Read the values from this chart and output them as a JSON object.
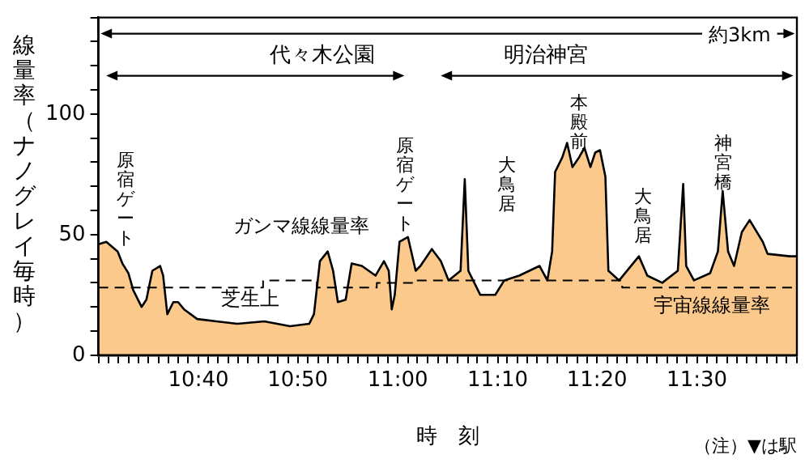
{
  "chart_data": {
    "type": "area",
    "xlabel": "時　刻",
    "ylabel": "線量率（ナノグレイ毎時）",
    "annotations": [
      "約3km",
      "代々木公園",
      "明治神宮",
      "原宿ゲート",
      "原宿ゲート",
      "大鳥居",
      "本殿前",
      "大鳥居",
      "神宮橋",
      "ガンマ線線量率",
      "芝生上",
      "宇宙線線量率",
      "（注）▼は駅"
    ],
    "series": [
      {
        "color": "#fbc98c",
        "x": [
          10.5,
          10.513,
          10.532,
          10.54,
          10.55,
          10.558,
          10.572,
          10.58,
          10.59,
          10.603,
          10.608,
          10.615,
          10.625,
          10.633,
          10.643,
          10.665,
          10.697,
          10.732,
          10.777,
          10.82,
          10.852,
          10.86,
          10.87,
          10.883,
          10.892,
          10.9,
          10.913,
          10.923,
          10.94,
          10.963,
          10.977,
          10.985,
          10.99,
          10.995,
          11.003,
          11.017,
          11.03,
          11.038,
          11.057,
          11.072,
          11.085,
          11.105,
          11.112,
          11.118,
          11.138,
          11.163,
          11.178,
          11.203,
          11.237,
          11.25,
          11.258,
          11.263,
          11.275,
          11.283,
          11.292,
          11.303,
          11.312,
          11.322,
          11.33,
          11.338,
          11.347,
          11.352,
          11.37,
          11.403,
          11.417,
          11.442,
          11.468,
          11.477,
          11.482,
          11.495,
          11.522,
          11.535,
          11.543,
          11.552,
          11.562,
          11.575,
          11.588,
          11.61,
          11.618,
          11.655,
          11.667
        ],
        "values": [
          46,
          47,
          43,
          38,
          34,
          27,
          20,
          23,
          35,
          37,
          33,
          17,
          22,
          22,
          19,
          15,
          14,
          13,
          14,
          12,
          13,
          17,
          39,
          43,
          35,
          22,
          23,
          38,
          37,
          33,
          39,
          35,
          19,
          25,
          47,
          49,
          35,
          37,
          44,
          39,
          31,
          35,
          73,
          35,
          25,
          25,
          31,
          33,
          37,
          31,
          43,
          76,
          82,
          88,
          78,
          82,
          86,
          78,
          84,
          85,
          74,
          35,
          31,
          41,
          33,
          30,
          35,
          71,
          37,
          31,
          34,
          43,
          68,
          43,
          37,
          51,
          56,
          47,
          42,
          41,
          41
        ]
      },
      {
        "type": "step",
        "color": "#000000",
        "line_style": "dashed",
        "x": [
          10.5,
          10.77,
          10.775,
          10.86,
          10.865,
          10.96,
          10.965,
          11.025,
          11.03,
          11.37,
          11.375,
          11.667
        ],
        "values": [
          28,
          28,
          31,
          31,
          28,
          28,
          30,
          30,
          31,
          31,
          28,
          28
        ]
      }
    ],
    "xlim": [
      10.5,
      11.667
    ],
    "xticks": [
      {
        "value": 10.5,
        "label": null
      },
      {
        "value": 10.517,
        "label": null
      },
      {
        "value": 10.533,
        "label": null
      },
      {
        "value": 10.55,
        "label": null
      },
      {
        "value": 10.567,
        "label": null
      },
      {
        "value": 10.583,
        "label": null
      },
      {
        "value": 10.6,
        "label": null
      },
      {
        "value": 10.617,
        "label": null
      },
      {
        "value": 10.633,
        "label": null
      },
      {
        "value": 10.65,
        "label": null
      },
      {
        "value": 10.667,
        "label": "10:40"
      },
      {
        "value": 10.683,
        "label": null
      },
      {
        "value": 10.7,
        "label": null
      },
      {
        "value": 10.717,
        "label": null
      },
      {
        "value": 10.733,
        "label": null
      },
      {
        "value": 10.75,
        "label": null
      },
      {
        "value": 10.767,
        "label": null
      },
      {
        "value": 10.783,
        "label": null
      },
      {
        "value": 10.8,
        "label": null
      },
      {
        "value": 10.817,
        "label": null
      },
      {
        "value": 10.833,
        "label": "10:50"
      },
      {
        "value": 10.85,
        "label": null
      },
      {
        "value": 10.867,
        "label": null
      },
      {
        "value": 10.883,
        "label": null
      },
      {
        "value": 10.9,
        "label": null
      },
      {
        "value": 10.917,
        "label": null
      },
      {
        "value": 10.933,
        "label": null
      },
      {
        "value": 10.95,
        "label": null
      },
      {
        "value": 10.967,
        "label": null
      },
      {
        "value": 10.983,
        "label": null
      },
      {
        "value": 11,
        "label": "11:00"
      },
      {
        "value": 11.017,
        "label": null
      },
      {
        "value": 11.033,
        "label": null
      },
      {
        "value": 11.05,
        "label": null
      },
      {
        "value": 11.067,
        "label": null
      },
      {
        "value": 11.083,
        "label": null
      },
      {
        "value": 11.1,
        "label": null
      },
      {
        "value": 11.117,
        "label": null
      },
      {
        "value": 11.133,
        "label": null
      },
      {
        "value": 11.15,
        "label": null
      },
      {
        "value": 11.167,
        "label": "11:10"
      },
      {
        "value": 11.183,
        "label": null
      },
      {
        "value": 11.2,
        "label": null
      },
      {
        "value": 11.217,
        "label": null
      },
      {
        "value": 11.233,
        "label": null
      },
      {
        "value": 11.25,
        "label": null
      },
      {
        "value": 11.267,
        "label": null
      },
      {
        "value": 11.283,
        "label": null
      },
      {
        "value": 11.3,
        "label": null
      },
      {
        "value": 11.317,
        "label": null
      },
      {
        "value": 11.333,
        "label": "11:20"
      },
      {
        "value": 11.35,
        "label": null
      },
      {
        "value": 11.367,
        "label": null
      },
      {
        "value": 11.383,
        "label": null
      },
      {
        "value": 11.4,
        "label": null
      },
      {
        "value": 11.417,
        "label": null
      },
      {
        "value": 11.433,
        "label": null
      },
      {
        "value": 11.45,
        "label": null
      },
      {
        "value": 11.467,
        "label": null
      },
      {
        "value": 11.483,
        "label": null
      },
      {
        "value": 11.5,
        "label": "11:30"
      },
      {
        "value": 11.517,
        "label": null
      },
      {
        "value": 11.533,
        "label": null
      },
      {
        "value": 11.55,
        "label": null
      },
      {
        "value": 11.567,
        "label": null
      },
      {
        "value": 11.583,
        "label": null
      },
      {
        "value": 11.6,
        "label": null
      },
      {
        "value": 11.617,
        "label": null
      },
      {
        "value": 11.633,
        "label": null
      },
      {
        "value": 11.65,
        "label": null
      },
      {
        "value": 11.667,
        "label": null
      }
    ],
    "ylim": [
      0,
      140
    ],
    "yticks": [
      0,
      {
        "value": 10,
        "label": null
      },
      {
        "value": 20,
        "label": null
      },
      {
        "value": 30,
        "label": null
      },
      {
        "value": 40,
        "label": null
      },
      50,
      {
        "value": 60,
        "label": null
      },
      {
        "value": 70,
        "label": null
      },
      {
        "value": 80,
        "label": null
      },
      {
        "value": 90,
        "label": null
      },
      100,
      {
        "value": 110,
        "label": null
      },
      {
        "value": 120,
        "label": null
      },
      {
        "value": 130,
        "label": null
      },
      {
        "value": 140,
        "label": null
      }
    ],
    "grid": false,
    "legend": false,
    "marker": "none"
  }
}
